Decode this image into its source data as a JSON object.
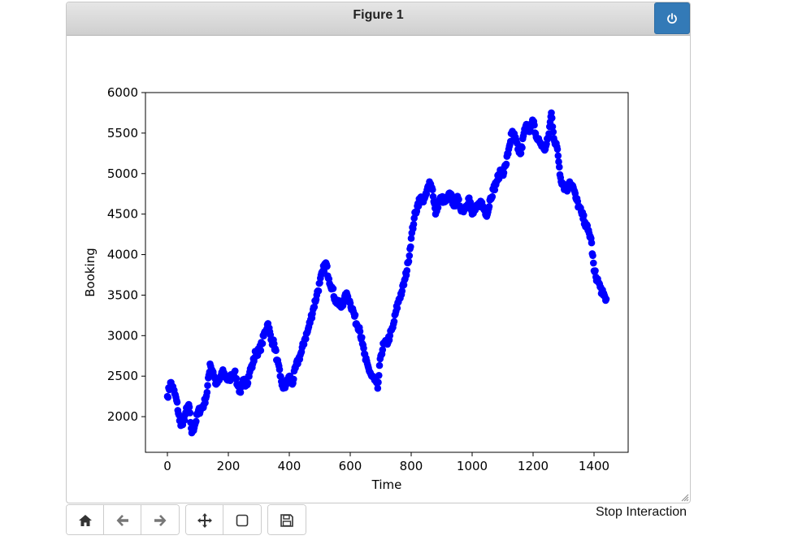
{
  "window": {
    "title": "Figure 1"
  },
  "toolbar": {
    "buttons": [
      {
        "name": "home-button",
        "icon": "home-icon"
      },
      {
        "name": "back-button",
        "icon": "arrow-left-icon"
      },
      {
        "name": "forward-button",
        "icon": "arrow-right-icon"
      },
      {
        "name": "pan-button",
        "icon": "move-icon"
      },
      {
        "name": "zoom-button",
        "icon": "zoom-rect-icon"
      },
      {
        "name": "save-button",
        "icon": "floppy-disk-icon"
      }
    ],
    "stop_label": "Stop Interaction"
  },
  "colors": {
    "marker": "#0000ff",
    "power_button": "#337ab7"
  },
  "chart_data": {
    "type": "scatter",
    "title": "",
    "xlabel": "Time",
    "ylabel": "Booking",
    "xlim": [
      -72,
      1512
    ],
    "ylim": [
      1560,
      6000
    ],
    "xticks": [
      0,
      200,
      400,
      600,
      800,
      1000,
      1200,
      1400
    ],
    "yticks": [
      2000,
      2500,
      3000,
      3500,
      4000,
      4500,
      5000,
      5500,
      6000
    ],
    "grid": false,
    "legend": "none",
    "marker": "o",
    "series": [
      {
        "color": "#0000ff",
        "x": [
          0,
          10,
          20,
          30,
          40,
          50,
          60,
          70,
          80,
          90,
          100,
          110,
          120,
          130,
          140,
          150,
          160,
          170,
          180,
          190,
          200,
          210,
          220,
          230,
          240,
          250,
          260,
          270,
          280,
          290,
          300,
          310,
          320,
          330,
          340,
          350,
          360,
          370,
          380,
          390,
          400,
          410,
          420,
          430,
          440,
          450,
          460,
          470,
          480,
          490,
          500,
          510,
          520,
          530,
          540,
          550,
          560,
          570,
          580,
          590,
          600,
          610,
          620,
          630,
          640,
          650,
          660,
          670,
          680,
          690,
          700,
          710,
          720,
          730,
          740,
          750,
          760,
          770,
          780,
          790,
          800,
          810,
          820,
          830,
          840,
          850,
          860,
          870,
          880,
          890,
          900,
          910,
          920,
          930,
          940,
          950,
          960,
          970,
          980,
          990,
          1000,
          1010,
          1020,
          1030,
          1040,
          1050,
          1060,
          1070,
          1080,
          1090,
          1100,
          1110,
          1120,
          1130,
          1140,
          1150,
          1160,
          1170,
          1180,
          1190,
          1200,
          1210,
          1220,
          1230,
          1240,
          1250,
          1260,
          1270,
          1280,
          1290,
          1300,
          1310,
          1320,
          1330,
          1340,
          1350,
          1360,
          1370,
          1380,
          1390,
          1400,
          1410,
          1420,
          1430,
          1440
        ],
        "y": [
          2250,
          2420,
          2330,
          2200,
          1950,
          1900,
          2050,
          2150,
          1800,
          1900,
          2050,
          2100,
          2150,
          2300,
          2650,
          2550,
          2400,
          2450,
          2550,
          2500,
          2450,
          2500,
          2550,
          2400,
          2300,
          2450,
          2400,
          2550,
          2650,
          2800,
          2800,
          2900,
          3050,
          3150,
          2950,
          2900,
          2700,
          2500,
          2350,
          2400,
          2500,
          2400,
          2600,
          2700,
          2800,
          2950,
          3050,
          3200,
          3350,
          3500,
          3650,
          3800,
          3900,
          3700,
          3600,
          3450,
          3400,
          3350,
          3450,
          3500,
          3400,
          3300,
          3150,
          3100,
          2900,
          2700,
          2600,
          2500,
          2450,
          2350,
          2750,
          2900,
          2900,
          3000,
          3100,
          3300,
          3450,
          3550,
          3700,
          3900,
          4200,
          4450,
          4600,
          4700,
          4650,
          4750,
          4900,
          4800,
          4500,
          4650,
          4700,
          4650,
          4700,
          4750,
          4600,
          4700,
          4600,
          4550,
          4600,
          4700,
          4500,
          4550,
          4600,
          4650,
          4550,
          4500,
          4700,
          4800,
          4900,
          5000,
          5000,
          5100,
          5300,
          5500,
          5450,
          5300,
          5250,
          5500,
          5600,
          5550,
          5650,
          5450,
          5400,
          5350,
          5300,
          5450,
          5750,
          5400,
          5300,
          4950,
          4850,
          4800,
          4900,
          4850,
          4700,
          4600,
          4500,
          4400,
          4300,
          4200,
          3800,
          3700,
          3600,
          3500,
          3450
        ]
      }
    ]
  }
}
